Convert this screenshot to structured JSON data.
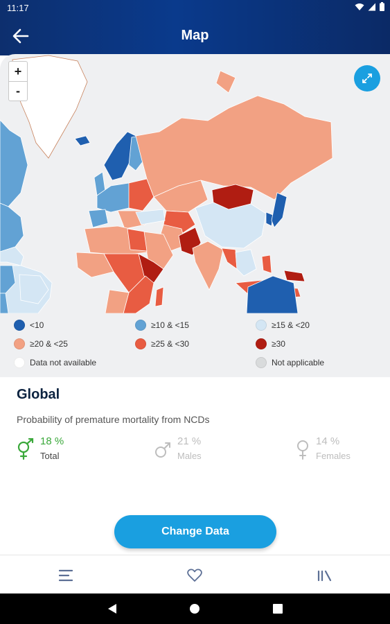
{
  "status_bar": {
    "time": "11:17"
  },
  "app_bar": {
    "title": "Map"
  },
  "map": {
    "zoom_in_label": "+",
    "zoom_out_label": "-",
    "ocean_color": "#eff0f2"
  },
  "legend": {
    "items": [
      {
        "label": "<10",
        "color": "#1f5faf"
      },
      {
        "label": "≥10 & <15",
        "color": "#62a2d4"
      },
      {
        "label": "≥15 & <20",
        "color": "#d4e6f4"
      },
      {
        "label": "≥20 & <25",
        "color": "#f2a183"
      },
      {
        "label": "≥25 & <30",
        "color": "#e85c42"
      },
      {
        "label": "≥30",
        "color": "#b01d12"
      },
      {
        "label": "Data not available",
        "color": "#ffffff"
      },
      {
        "label": "Not applicable",
        "color": "#d9dbdc"
      }
    ]
  },
  "details": {
    "region": "Global",
    "indicator": "Probability of premature mortality from NCDs",
    "stats": [
      {
        "value": "18 %",
        "label": "Total",
        "icon": "gender-both-icon"
      },
      {
        "value": "21 %",
        "label": "Males",
        "icon": "male-icon"
      },
      {
        "value": "14 %",
        "label": "Females",
        "icon": "female-icon"
      }
    ],
    "active_color": "#3aa83a"
  },
  "actions": {
    "change_data_label": "Change Data"
  },
  "tabs": [
    {
      "icon": "menu-icon"
    },
    {
      "icon": "heart-icon"
    },
    {
      "icon": "library-icon"
    }
  ],
  "accent_color": "#1a9fe0"
}
